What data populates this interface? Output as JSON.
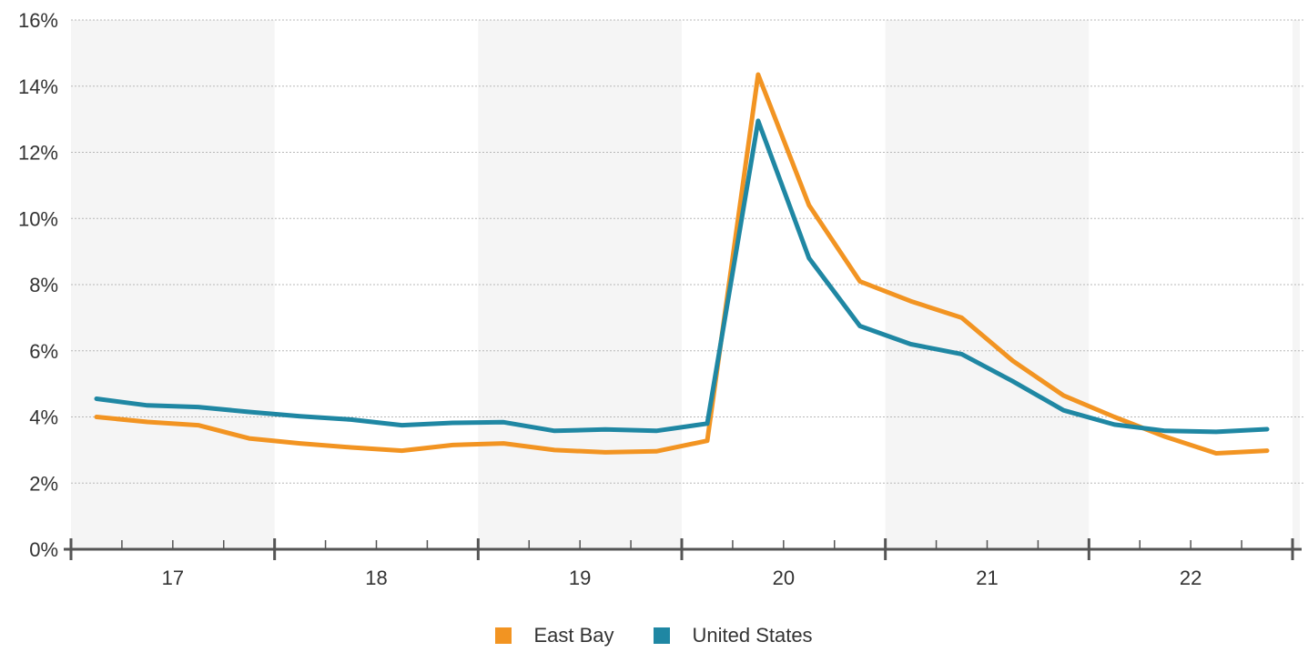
{
  "chart_data": {
    "type": "line",
    "title": "",
    "xlabel": "",
    "ylabel": "",
    "ylim": [
      0,
      16
    ],
    "y_ticks": [
      "0%",
      "2%",
      "4%",
      "6%",
      "8%",
      "10%",
      "12%",
      "14%",
      "16%"
    ],
    "y_tick_values": [
      0,
      2,
      4,
      6,
      8,
      10,
      12,
      14,
      16
    ],
    "x_ticks": [
      "17",
      "18",
      "19",
      "20",
      "21",
      "22"
    ],
    "x_domain": [
      2016.5,
      2022.5
    ],
    "x": [
      2016.625,
      2016.875,
      2017.125,
      2017.375,
      2017.625,
      2017.875,
      2018.125,
      2018.375,
      2018.625,
      2018.875,
      2019.125,
      2019.375,
      2019.625,
      2019.875,
      2020.125,
      2020.375,
      2020.625,
      2020.875,
      2021.125,
      2021.375,
      2021.625,
      2021.875,
      2022.125,
      2022.375
    ],
    "grid": true,
    "alternating_year_bands": true,
    "legend_position": "bottom-center",
    "series": [
      {
        "name": "East Bay",
        "color": "#f29422",
        "values": [
          4.0,
          3.85,
          3.75,
          3.35,
          3.2,
          3.08,
          2.98,
          3.15,
          3.2,
          3.0,
          2.93,
          2.96,
          3.28,
          14.35,
          10.4,
          8.1,
          7.5,
          7.0,
          5.7,
          4.65,
          4.0,
          3.4,
          2.9,
          2.98
        ]
      },
      {
        "name": "United States",
        "color": "#1f87a3",
        "values": [
          4.55,
          4.35,
          4.3,
          4.15,
          4.02,
          3.92,
          3.75,
          3.82,
          3.84,
          3.58,
          3.62,
          3.58,
          3.8,
          12.95,
          8.8,
          6.75,
          6.2,
          5.9,
          5.08,
          4.2,
          3.77,
          3.58,
          3.55,
          3.63
        ]
      }
    ]
  }
}
